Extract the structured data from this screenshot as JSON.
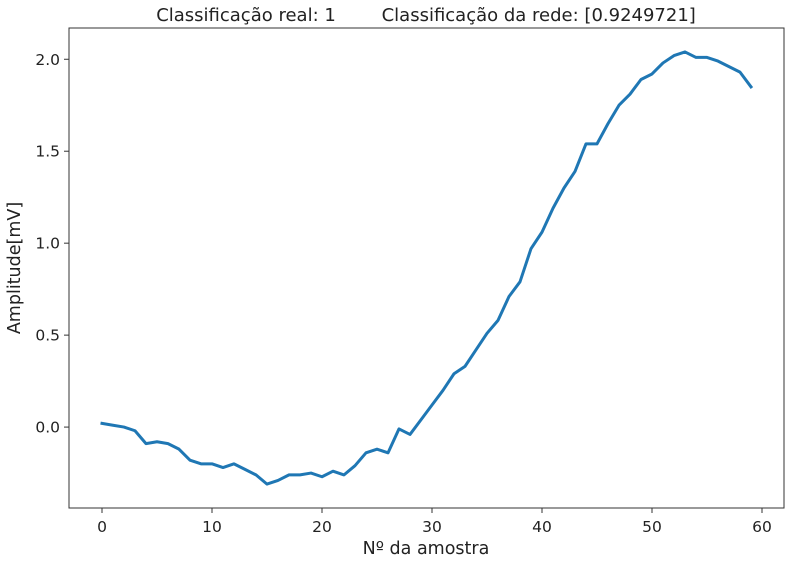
{
  "chart_data": {
    "type": "line",
    "title": "Classificação real: 1        Classificação da rede: [0.9249721]",
    "xlabel": "Nº da amostra",
    "ylabel": "Amplitude[mV]",
    "xlim": [
      -3,
      62
    ],
    "ylim": [
      -0.44,
      2.17
    ],
    "xticks": [
      0,
      10,
      20,
      30,
      40,
      50,
      60
    ],
    "yticks": [
      0.0,
      0.5,
      1.0,
      1.5,
      2.0
    ],
    "xtick_labels": [
      "0",
      "10",
      "20",
      "30",
      "40",
      "50",
      "60"
    ],
    "ytick_labels": [
      "0.0",
      "0.5",
      "1.0",
      "1.5",
      "2.0"
    ],
    "grid": false,
    "legend": "none",
    "series": [
      {
        "color": "#1f77b4",
        "x": [
          0,
          1,
          2,
          3,
          4,
          5,
          6,
          7,
          8,
          9,
          10,
          11,
          12,
          13,
          14,
          15,
          16,
          17,
          18,
          19,
          20,
          21,
          22,
          23,
          24,
          25,
          26,
          27,
          28,
          29,
          30,
          31,
          32,
          33,
          34,
          35,
          36,
          37,
          38,
          39,
          40,
          41,
          42,
          43,
          44,
          45,
          46,
          47,
          48,
          49,
          50,
          51,
          52,
          53,
          54,
          55,
          56,
          57,
          58,
          59
        ],
        "y": [
          0.02,
          0.01,
          0.0,
          -0.02,
          -0.09,
          -0.08,
          -0.09,
          -0.12,
          -0.18,
          -0.2,
          -0.2,
          -0.22,
          -0.2,
          -0.23,
          -0.26,
          -0.31,
          -0.29,
          -0.26,
          -0.26,
          -0.25,
          -0.27,
          -0.24,
          -0.26,
          -0.21,
          -0.14,
          -0.12,
          -0.14,
          -0.01,
          -0.04,
          0.04,
          0.12,
          0.2,
          0.29,
          0.33,
          0.42,
          0.51,
          0.58,
          0.71,
          0.79,
          0.97,
          1.06,
          1.19,
          1.3,
          1.39,
          1.54,
          1.54,
          1.65,
          1.75,
          1.81,
          1.89,
          1.92,
          1.98,
          2.02,
          2.04,
          2.01,
          2.01,
          1.99,
          1.96,
          1.93,
          1.85
        ]
      }
    ]
  }
}
